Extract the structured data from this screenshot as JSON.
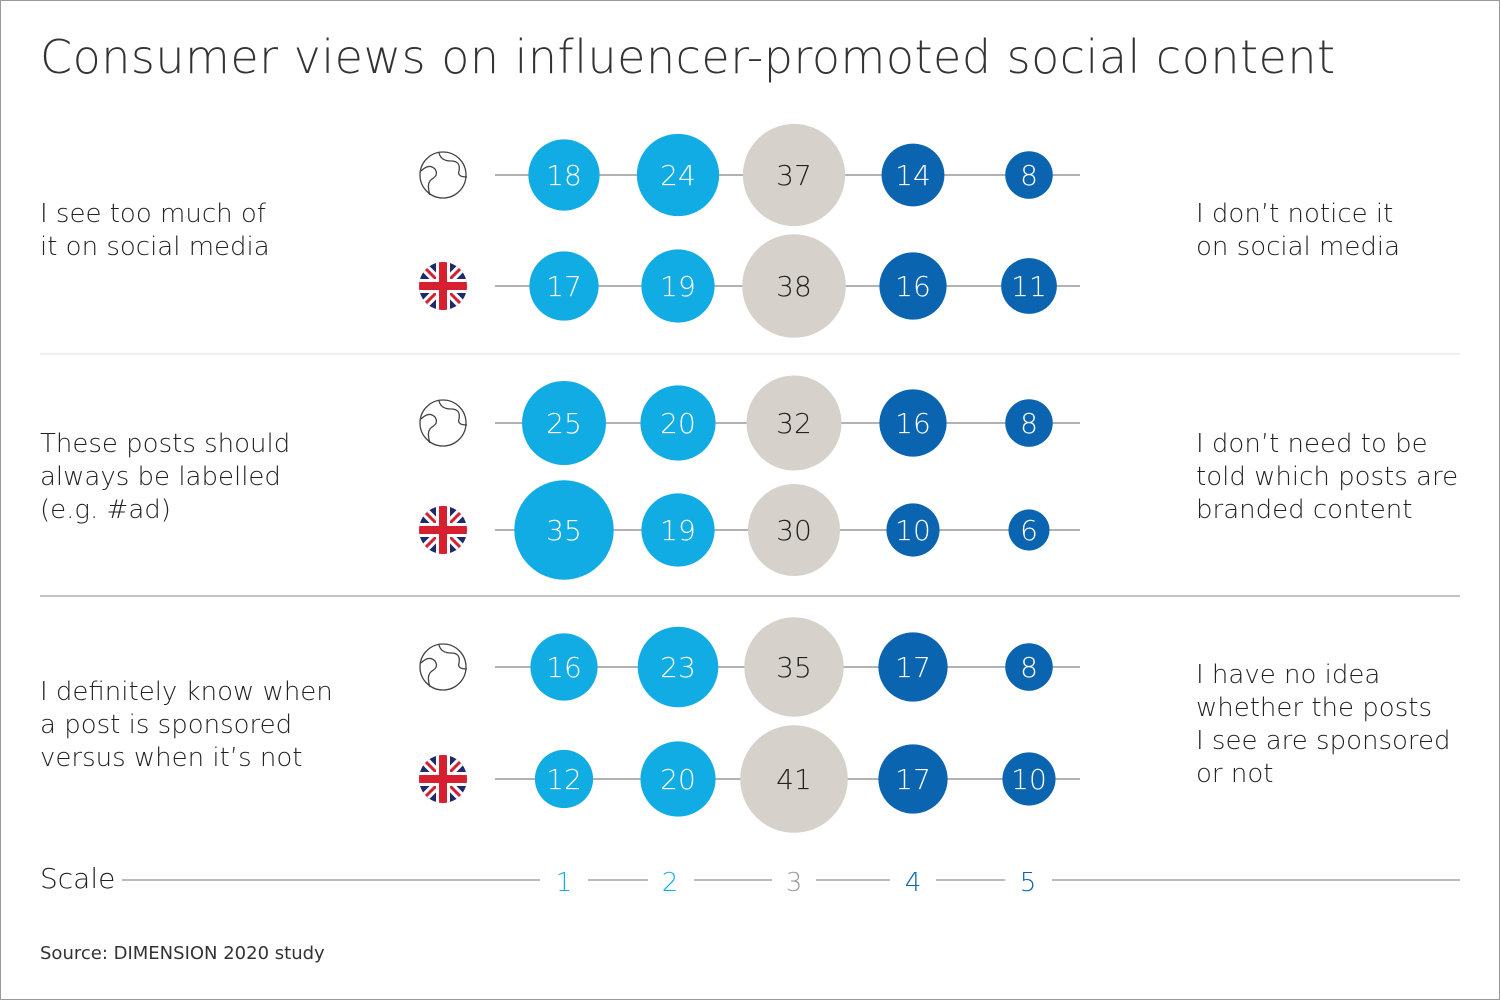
{
  "chart_data": {
    "type": "bubble",
    "title": "Consumer views on influencer-promoted social content",
    "scale_label": "Scale",
    "scale_ticks": [
      "1",
      "2",
      "3",
      "4",
      "5"
    ],
    "colors": {
      "1": "#12ace4",
      "2": "#12ace4",
      "3": "#d6d2cb",
      "4": "#0b64b0",
      "5": "#0b64b0"
    },
    "groups": [
      {
        "left": "I see too much of\nit on social media",
        "right": "I don’t notice it\non social media",
        "rows": [
          {
            "region": "globe-icon",
            "values": [
              18,
              24,
              37,
              14,
              8
            ]
          },
          {
            "region": "uk-flag-icon",
            "values": [
              17,
              19,
              38,
              16,
              11
            ]
          }
        ]
      },
      {
        "left": "These posts should\nalways be labelled\n(e.g. #ad)",
        "right": "I don’t need to be\ntold which posts are\nbranded content",
        "rows": [
          {
            "region": "globe-icon",
            "values": [
              25,
              20,
              32,
              16,
              8
            ]
          },
          {
            "region": "uk-flag-icon",
            "values": [
              35,
              19,
              30,
              10,
              6
            ]
          }
        ]
      },
      {
        "left": "I definitely know when\na post is sponsored\nversus when it’s not",
        "right": "I have no idea\nwhether the posts\nI see are sponsored\nor not",
        "rows": [
          {
            "region": "globe-icon",
            "values": [
              16,
              23,
              35,
              17,
              8
            ]
          },
          {
            "region": "uk-flag-icon",
            "values": [
              12,
              20,
              41,
              17,
              10
            ]
          }
        ]
      }
    ]
  },
  "source": "Source: DIMENSION 2020 study"
}
